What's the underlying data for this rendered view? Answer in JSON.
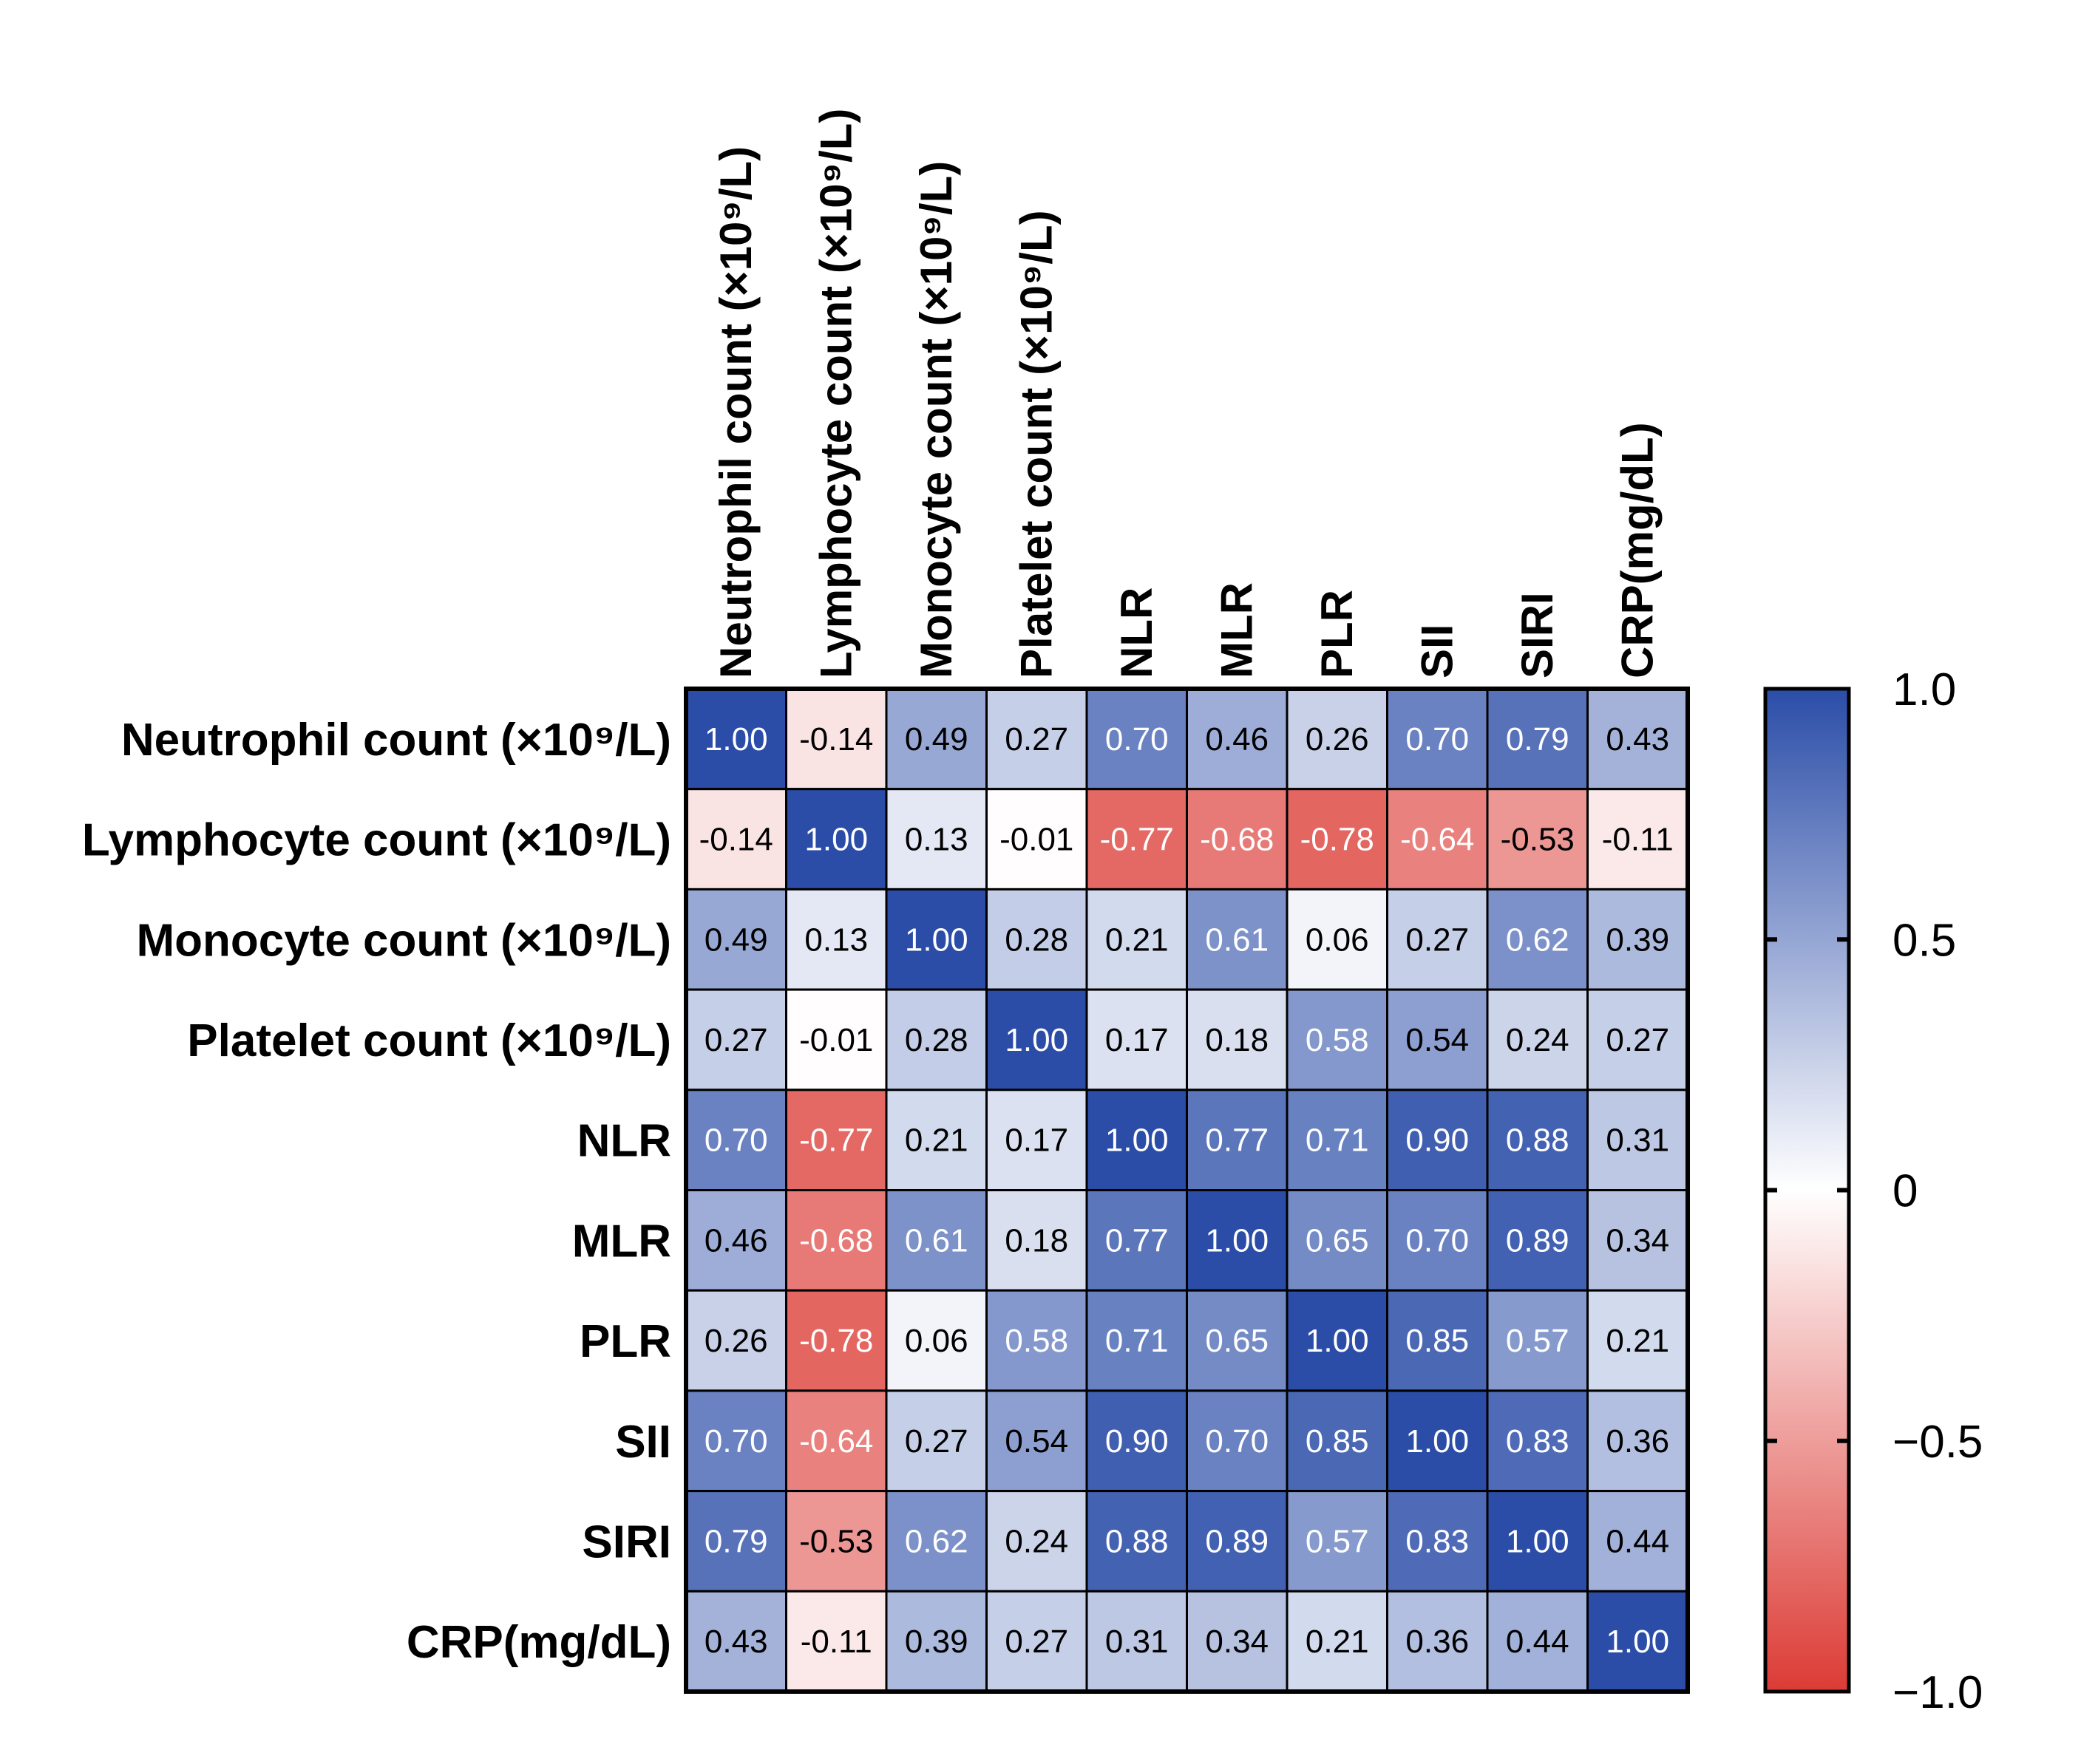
{
  "chart_data": {
    "type": "heatmap",
    "title": "",
    "row_labels": [
      "Neutrophil count (×10⁹/L)",
      "Lymphocyte count (×10⁹/L)",
      "Monocyte count (×10⁹/L)",
      "Platelet count (×10⁹/L)",
      "NLR",
      "MLR",
      "PLR",
      "SII",
      "SIRI",
      "CRP(mg/dL)"
    ],
    "column_labels": [
      "Neutrophil count (×10⁹/L)",
      "Lymphocyte count (×10⁹/L)",
      "Monocyte count (×10⁹/L)",
      "Platelet count (×10⁹/L)",
      "NLR",
      "MLR",
      "PLR",
      "SII",
      "SIRI",
      "CRP(mg/dL)"
    ],
    "values": [
      [
        1.0,
        -0.14,
        0.49,
        0.27,
        0.7,
        0.46,
        0.26,
        0.7,
        0.79,
        0.43
      ],
      [
        -0.14,
        1.0,
        0.13,
        -0.01,
        -0.77,
        -0.68,
        -0.78,
        -0.64,
        -0.53,
        -0.11
      ],
      [
        0.49,
        0.13,
        1.0,
        0.28,
        0.21,
        0.61,
        0.06,
        0.27,
        0.62,
        0.39
      ],
      [
        0.27,
        -0.01,
        0.28,
        1.0,
        0.17,
        0.18,
        0.58,
        0.54,
        0.24,
        0.27
      ],
      [
        0.7,
        -0.77,
        0.21,
        0.17,
        1.0,
        0.77,
        0.71,
        0.9,
        0.88,
        0.31
      ],
      [
        0.46,
        -0.68,
        0.61,
        0.18,
        0.77,
        1.0,
        0.65,
        0.7,
        0.89,
        0.34
      ],
      [
        0.26,
        -0.78,
        0.06,
        0.58,
        0.71,
        0.65,
        1.0,
        0.85,
        0.57,
        0.21
      ],
      [
        0.7,
        -0.64,
        0.27,
        0.54,
        0.9,
        0.7,
        0.85,
        1.0,
        0.83,
        0.36
      ],
      [
        0.79,
        -0.53,
        0.62,
        0.24,
        0.88,
        0.89,
        0.57,
        0.83,
        1.0,
        0.44
      ],
      [
        0.43,
        -0.11,
        0.39,
        0.27,
        0.31,
        0.34,
        0.21,
        0.36,
        0.44,
        1.0
      ]
    ],
    "value_format": "2 decimals",
    "colorscale": {
      "min": -1.0,
      "max": 1.0,
      "low_color": "#dc3b35",
      "mid_color": "#ffffff",
      "high_color": "#2b4da8"
    },
    "colorbar": {
      "ticks": [
        1.0,
        0.5,
        0,
        -0.5,
        -1.0
      ],
      "tick_labels": [
        "1.0",
        "0.5",
        "0",
        "−0.5",
        "−1.0"
      ]
    }
  }
}
